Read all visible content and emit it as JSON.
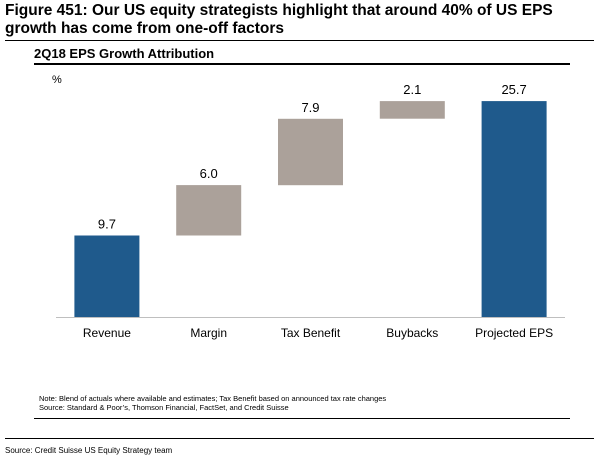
{
  "figure": {
    "title": "Figure 451: Our US equity strategists highlight that around 40% of US EPS growth has come from one-off factors"
  },
  "chart_data": {
    "type": "waterfall",
    "title": "2Q18 EPS Growth Attribution",
    "ylabel": "%",
    "xlabel": "",
    "categories": [
      "Revenue",
      "Margin",
      "Tax Benefit",
      "Buybacks",
      "Projected EPS"
    ],
    "values": [
      9.7,
      6.0,
      7.9,
      2.1,
      25.7
    ],
    "kinds": [
      "total",
      "increment",
      "increment",
      "increment",
      "total"
    ],
    "data_labels": [
      "9.7",
      "6.0",
      "7.9",
      "2.1",
      "25.7"
    ],
    "ylim": [
      0,
      27.5
    ],
    "grid": false,
    "legend": "none",
    "colors": {
      "total": "#1f5a8c",
      "increment": "#aba19a"
    }
  },
  "notes": {
    "line1": "Note: Blend of actuals where available and estimates; Tax Benefit based on announced tax rate changes",
    "line2": "Source: Standard & Poor’s, Thomson Financial, FactSet, and Credit Suisse"
  },
  "footer": {
    "source": "Source: Credit Suisse US Equity Strategy team"
  }
}
